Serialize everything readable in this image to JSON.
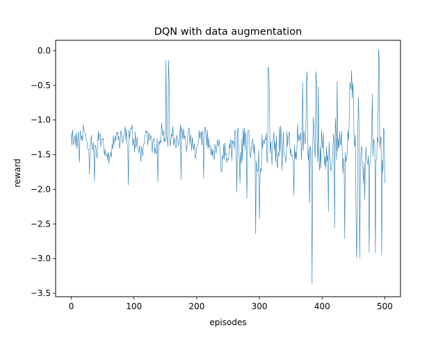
{
  "chart_data": {
    "type": "line",
    "title": "DQN with data augmentation",
    "xlabel": "episodes",
    "ylabel": "reward",
    "xlim": [
      -25,
      525
    ],
    "ylim": [
      -3.55,
      0.15
    ],
    "xticks": [
      0,
      100,
      200,
      300,
      400,
      500
    ],
    "xtick_labels": [
      "0",
      "100",
      "200",
      "300",
      "400",
      "500"
    ],
    "yticks": [
      0.0,
      -0.5,
      -1.0,
      -1.5,
      -2.0,
      -2.5,
      -3.0,
      -3.5
    ],
    "ytick_labels": [
      "0.0",
      "−0.5",
      "−1.0",
      "−1.5",
      "−2.0",
      "−2.5",
      "−3.0",
      "−3.5"
    ],
    "grid": false,
    "legend": null,
    "line_color": "#1f77b4",
    "series": [
      {
        "name": "",
        "x_start": 0,
        "x_step": 5,
        "values": [
          -1.19,
          -1.28,
          -1.35,
          -1.22,
          -1.12,
          -1.31,
          -1.37,
          -1.32,
          -1.45,
          -1.21,
          -1.28,
          -1.52,
          -1.63,
          -1.35,
          -1.23,
          -1.29,
          -1.21,
          -1.14,
          -1.37,
          -1.11,
          -1.33,
          -1.24,
          -1.48,
          -1.36,
          -1.18,
          -1.29,
          -1.33,
          -1.49,
          -1.3,
          -1.16,
          -1.31,
          -0.14,
          -1.2,
          -1.26,
          -1.32,
          -1.12,
          -1.28,
          -1.32,
          -1.21,
          -1.43,
          -1.39,
          -1.27,
          -1.19,
          -1.24,
          -1.39,
          -1.52,
          -1.41,
          -1.36,
          -1.74,
          -1.33,
          -1.56,
          -1.3,
          -1.42,
          -1.19,
          -1.46,
          -1.37,
          -1.25,
          -1.48,
          -1.34,
          -1.59,
          -1.74,
          -1.41,
          -1.29,
          -0.24,
          -1.65,
          -1.31,
          -1.47,
          -1.22,
          -1.53,
          -1.38,
          -1.42,
          -1.61,
          -1.34,
          -1.29,
          -1.44,
          -0.47,
          -1.56,
          -1.39,
          -0.3,
          -1.58,
          -1.36,
          -1.52,
          -1.43,
          -1.68,
          -0.51,
          -1.45,
          -1.36,
          -1.59,
          -1.49,
          -0.47,
          -0.68,
          -2.99,
          -1.48,
          -1.71,
          -1.39,
          -1.52,
          -1.47,
          -2.92,
          -0.02,
          -1.22,
          -1.91
        ]
      }
    ],
    "spikes": [
      {
        "x": 13,
        "y": -1.61
      },
      {
        "x": 29,
        "y": -1.78
      },
      {
        "x": 37,
        "y": -1.88
      },
      {
        "x": 91,
        "y": -1.94
      },
      {
        "x": 138,
        "y": -1.89
      },
      {
        "x": 151,
        "y": -0.14
      },
      {
        "x": 175,
        "y": -1.86
      },
      {
        "x": 211,
        "y": -1.84
      },
      {
        "x": 264,
        "y": -2.04
      },
      {
        "x": 269,
        "y": -1.91
      },
      {
        "x": 280,
        "y": -2.13
      },
      {
        "x": 294,
        "y": -2.64
      },
      {
        "x": 300,
        "y": -2.43
      },
      {
        "x": 314,
        "y": -0.24
      },
      {
        "x": 336,
        "y": -1.73
      },
      {
        "x": 355,
        "y": -2.09
      },
      {
        "x": 369,
        "y": -0.46
      },
      {
        "x": 376,
        "y": -0.3
      },
      {
        "x": 380,
        "y": -2.2
      },
      {
        "x": 384,
        "y": -3.36
      },
      {
        "x": 394,
        "y": -0.52
      },
      {
        "x": 410,
        "y": -2.32
      },
      {
        "x": 420,
        "y": -2.55
      },
      {
        "x": 424,
        "y": -0.44
      },
      {
        "x": 436,
        "y": -2.71
      },
      {
        "x": 444,
        "y": -0.47
      },
      {
        "x": 454,
        "y": -2.3
      },
      {
        "x": 458,
        "y": -0.67
      },
      {
        "x": 460,
        "y": -2.99
      },
      {
        "x": 468,
        "y": -2.15
      },
      {
        "x": 475,
        "y": -2.91
      },
      {
        "x": 480,
        "y": -0.63
      },
      {
        "x": 490,
        "y": 0.02
      },
      {
        "x": 495,
        "y": -2.95
      },
      {
        "x": 500,
        "y": -1.91
      }
    ]
  }
}
